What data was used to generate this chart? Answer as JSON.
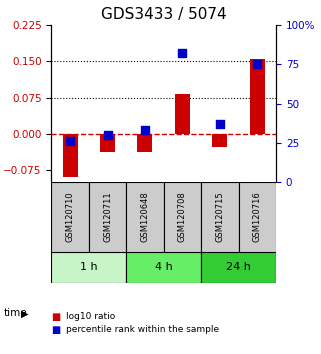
{
  "title": "GDS3433 / 5074",
  "samples": [
    "GSM120710",
    "GSM120711",
    "GSM120648",
    "GSM120708",
    "GSM120715",
    "GSM120716"
  ],
  "log10_ratio": [
    -0.088,
    -0.038,
    -0.038,
    0.082,
    -0.028,
    0.155
  ],
  "percentile_rank_pct": [
    26,
    30,
    33,
    82,
    37,
    75
  ],
  "groups": [
    {
      "label": "1 h",
      "samples": [
        0,
        1
      ],
      "color": "#c8f5c8"
    },
    {
      "label": "4 h",
      "samples": [
        2,
        3
      ],
      "color": "#66ee66"
    },
    {
      "label": "24 h",
      "samples": [
        4,
        5
      ],
      "color": "#33cc33"
    }
  ],
  "ylim_left": [
    -0.1,
    0.225
  ],
  "ylim_right": [
    0,
    100
  ],
  "yticks_left": [
    -0.075,
    0,
    0.075,
    0.15,
    0.225
  ],
  "yticks_right": [
    0,
    25,
    50,
    75,
    100
  ],
  "hlines": [
    0.075,
    0.15
  ],
  "bar_color": "#cc0000",
  "dot_color": "#0000cc",
  "bar_width": 0.4,
  "dot_size": 28,
  "background_color": "#ffffff",
  "plot_bg": "#ffffff",
  "zero_line_color": "#cc0000",
  "zero_line_style": "--",
  "hline_color": "#000000",
  "hline_style": ":",
  "sample_box_color": "#cccccc",
  "time_label": "time",
  "legend_items": [
    "log10 ratio",
    "percentile rank within the sample"
  ],
  "legend_colors": [
    "#cc0000",
    "#0000cc"
  ],
  "title_fontsize": 11,
  "tick_fontsize": 7.5,
  "label_fontsize": 8
}
